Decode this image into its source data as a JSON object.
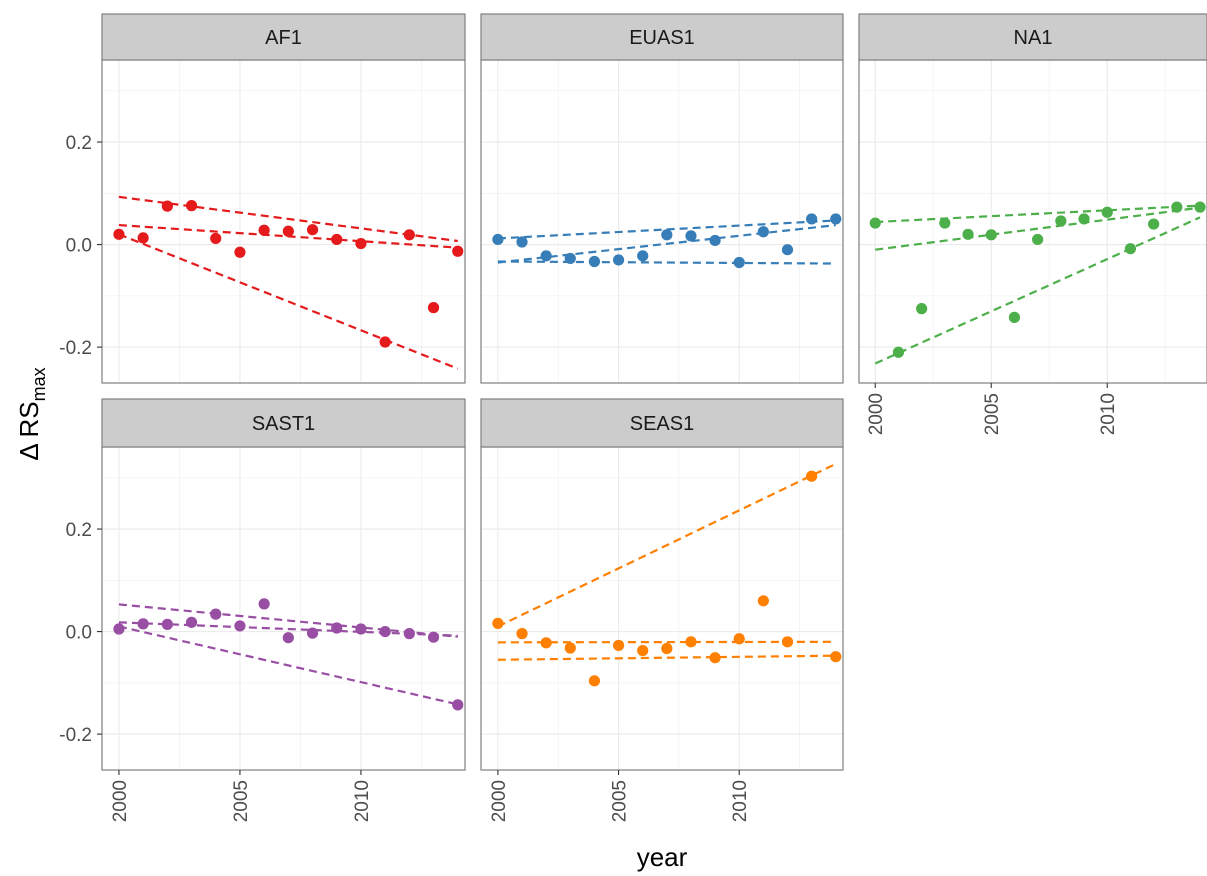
{
  "chart_data": {
    "type": "scatter",
    "layout": "faceted",
    "xlabel": "year",
    "ylabel": {
      "main": "Δ RS",
      "subscript": "max"
    },
    "xlim": [
      1999.3,
      2014.3
    ],
    "ylim": [
      -0.27,
      0.36
    ],
    "x_ticks": [
      2000,
      2005,
      2010
    ],
    "y_ticks": [
      -0.2,
      0.0,
      0.2
    ],
    "y_tick_labels": [
      "-0.2",
      "0.0",
      "0.2"
    ],
    "grid": true,
    "panels": [
      {
        "name": "AF1",
        "color": "#E41A1C",
        "points": [
          {
            "x": 2000,
            "y": 0.02
          },
          {
            "x": 2001,
            "y": 0.013
          },
          {
            "x": 2002,
            "y": 0.075
          },
          {
            "x": 2003,
            "y": 0.076
          },
          {
            "x": 2004,
            "y": 0.012
          },
          {
            "x": 2005,
            "y": -0.015
          },
          {
            "x": 2006,
            "y": 0.028
          },
          {
            "x": 2007,
            "y": 0.026
          },
          {
            "x": 2008,
            "y": 0.029
          },
          {
            "x": 2009,
            "y": 0.01
          },
          {
            "x": 2010,
            "y": 0.002
          },
          {
            "x": 2011,
            "y": -0.19
          },
          {
            "x": 2012,
            "y": 0.019
          },
          {
            "x": 2013,
            "y": -0.123
          },
          {
            "x": 2014,
            "y": -0.013
          }
        ],
        "trend_lines": [
          {
            "x": [
              2000,
              2014
            ],
            "y": [
              0.093,
              0.007
            ]
          },
          {
            "x": [
              2000,
              2014
            ],
            "y": [
              0.038,
              -0.006
            ]
          },
          {
            "x": [
              2000,
              2014
            ],
            "y": [
              0.02,
              -0.242
            ]
          }
        ]
      },
      {
        "name": "EUAS1",
        "color": "#377EB8",
        "points": [
          {
            "x": 2000,
            "y": 0.01
          },
          {
            "x": 2001,
            "y": 0.005
          },
          {
            "x": 2002,
            "y": -0.022
          },
          {
            "x": 2003,
            "y": -0.027
          },
          {
            "x": 2004,
            "y": -0.033
          },
          {
            "x": 2005,
            "y": -0.03
          },
          {
            "x": 2006,
            "y": -0.022
          },
          {
            "x": 2007,
            "y": 0.019
          },
          {
            "x": 2008,
            "y": 0.017
          },
          {
            "x": 2009,
            "y": 0.008
          },
          {
            "x": 2010,
            "y": -0.035
          },
          {
            "x": 2011,
            "y": 0.025
          },
          {
            "x": 2012,
            "y": -0.01
          },
          {
            "x": 2013,
            "y": 0.05
          },
          {
            "x": 2014,
            "y": 0.05
          }
        ],
        "trend_lines": [
          {
            "x": [
              2000,
              2014
            ],
            "y": [
              0.012,
              0.047
            ]
          },
          {
            "x": [
              2000,
              2014
            ],
            "y": [
              -0.035,
              0.038
            ]
          },
          {
            "x": [
              2000,
              2014
            ],
            "y": [
              -0.033,
              -0.037
            ]
          }
        ]
      },
      {
        "name": "NA1",
        "color": "#4DAF4A",
        "points": [
          {
            "x": 2000,
            "y": 0.042
          },
          {
            "x": 2001,
            "y": -0.21
          },
          {
            "x": 2002,
            "y": -0.125
          },
          {
            "x": 2003,
            "y": 0.042
          },
          {
            "x": 2004,
            "y": 0.02
          },
          {
            "x": 2005,
            "y": 0.019
          },
          {
            "x": 2006,
            "y": -0.142
          },
          {
            "x": 2007,
            "y": 0.01
          },
          {
            "x": 2008,
            "y": 0.046
          },
          {
            "x": 2009,
            "y": 0.05
          },
          {
            "x": 2010,
            "y": 0.063
          },
          {
            "x": 2011,
            "y": -0.008
          },
          {
            "x": 2012,
            "y": 0.04
          },
          {
            "x": 2013,
            "y": 0.073
          },
          {
            "x": 2014,
            "y": 0.073
          }
        ],
        "trend_lines": [
          {
            "x": [
              2000,
              2014
            ],
            "y": [
              0.044,
              0.076
            ]
          },
          {
            "x": [
              2000,
              2014
            ],
            "y": [
              -0.01,
              0.072
            ]
          },
          {
            "x": [
              2000,
              2014
            ],
            "y": [
              -0.232,
              0.053
            ]
          }
        ]
      },
      {
        "name": "SAST1",
        "color": "#984EA3",
        "points": [
          {
            "x": 2000,
            "y": 0.005
          },
          {
            "x": 2001,
            "y": 0.015
          },
          {
            "x": 2002,
            "y": 0.014
          },
          {
            "x": 2003,
            "y": 0.018
          },
          {
            "x": 2004,
            "y": 0.034
          },
          {
            "x": 2005,
            "y": 0.011
          },
          {
            "x": 2006,
            "y": 0.054
          },
          {
            "x": 2007,
            "y": -0.012
          },
          {
            "x": 2008,
            "y": -0.003
          },
          {
            "x": 2009,
            "y": 0.007
          },
          {
            "x": 2010,
            "y": 0.005
          },
          {
            "x": 2011,
            "y": 0.0
          },
          {
            "x": 2012,
            "y": -0.004
          },
          {
            "x": 2013,
            "y": -0.011
          },
          {
            "x": 2014,
            "y": -0.143
          }
        ],
        "trend_lines": [
          {
            "x": [
              2000,
              2014
            ],
            "y": [
              0.053,
              -0.01
            ]
          },
          {
            "x": [
              2000,
              2014
            ],
            "y": [
              0.018,
              -0.008
            ]
          },
          {
            "x": [
              2000,
              2014
            ],
            "y": [
              0.01,
              -0.142
            ]
          }
        ]
      },
      {
        "name": "SEAS1",
        "color": "#FF7F00",
        "points": [
          {
            "x": 2000,
            "y": 0.016
          },
          {
            "x": 2001,
            "y": -0.004
          },
          {
            "x": 2002,
            "y": -0.022
          },
          {
            "x": 2003,
            "y": -0.032
          },
          {
            "x": 2004,
            "y": -0.096
          },
          {
            "x": 2005,
            "y": -0.027
          },
          {
            "x": 2006,
            "y": -0.037
          },
          {
            "x": 2007,
            "y": -0.033
          },
          {
            "x": 2008,
            "y": -0.02
          },
          {
            "x": 2009,
            "y": -0.051
          },
          {
            "x": 2010,
            "y": -0.014
          },
          {
            "x": 2011,
            "y": 0.06
          },
          {
            "x": 2012,
            "y": -0.02
          },
          {
            "x": 2013,
            "y": 0.303
          },
          {
            "x": 2014,
            "y": -0.049
          }
        ],
        "trend_lines": [
          {
            "x": [
              2000,
              2014
            ],
            "y": [
              0.01,
              0.327
            ]
          },
          {
            "x": [
              2000,
              2014
            ],
            "y": [
              -0.021,
              -0.02
            ]
          },
          {
            "x": [
              2000,
              2014
            ],
            "y": [
              -0.055,
              -0.047
            ]
          }
        ]
      }
    ]
  }
}
